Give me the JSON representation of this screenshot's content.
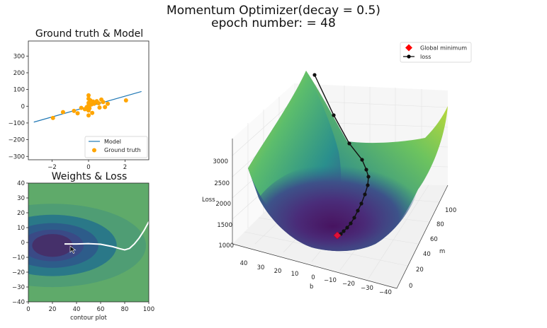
{
  "figure": {
    "title_line1": "Momentum Optimizer(decay = 0.5)",
    "title_line2": "epoch number: = 48"
  },
  "colors": {
    "model_line": "#1f77b4",
    "ground_truth": "#ffa500",
    "path_line": "#000000",
    "global_min": "#ff0000"
  },
  "chart_data": [
    {
      "id": "ground-truth-model",
      "type": "scatter",
      "title": "Ground truth & Model",
      "xlim": [
        -3.3,
        3.3
      ],
      "ylim": [
        -320,
        390
      ],
      "xticks": [
        -2,
        0,
        2
      ],
      "xtick_labels": [
        "−2",
        "0",
        "2"
      ],
      "yticks": [
        -300,
        -200,
        -100,
        0,
        100,
        200,
        300
      ],
      "ytick_labels": [
        "−300",
        "−200",
        "−100",
        "0",
        "100",
        "200",
        "300"
      ],
      "legend_position": "lower right",
      "series": [
        {
          "name": "Model",
          "kind": "line",
          "x": [
            -3.0,
            2.9
          ],
          "y": [
            -95,
            88
          ]
        },
        {
          "name": "Ground truth",
          "kind": "scatter",
          "points": [
            [
              -1.95,
              -70
            ],
            [
              -1.4,
              -35
            ],
            [
              -0.8,
              -28
            ],
            [
              -0.6,
              -42
            ],
            [
              -0.4,
              -10
            ],
            [
              -0.2,
              -18
            ],
            [
              -0.1,
              -5
            ],
            [
              0.0,
              -25
            ],
            [
              0.0,
              -55
            ],
            [
              0.0,
              65
            ],
            [
              0.0,
              45
            ],
            [
              0.0,
              20
            ],
            [
              0.0,
              5
            ],
            [
              0.05,
              -12
            ],
            [
              0.1,
              35
            ],
            [
              0.15,
              10
            ],
            [
              0.2,
              -40
            ],
            [
              0.25,
              28
            ],
            [
              0.3,
              15
            ],
            [
              0.35,
              22
            ],
            [
              0.45,
              30
            ],
            [
              0.55,
              18
            ],
            [
              0.6,
              -8
            ],
            [
              0.7,
              40
            ],
            [
              0.8,
              25
            ],
            [
              0.9,
              -5
            ],
            [
              1.05,
              15
            ],
            [
              2.05,
              35
            ]
          ]
        }
      ]
    },
    {
      "id": "weights-loss-contour",
      "type": "contour",
      "title": "Weights & Loss",
      "xlabel": "contour plot",
      "xlim": [
        0,
        100
      ],
      "ylim": [
        -40,
        40
      ],
      "xticks": [
        0,
        20,
        40,
        60,
        80,
        100
      ],
      "yticks": [
        -40,
        -30,
        -20,
        -10,
        0,
        10,
        20,
        30,
        40
      ],
      "ytick_labels": [
        "−40",
        "−30",
        "−20",
        "−10",
        "0",
        "10",
        "20",
        "30",
        "40"
      ],
      "levels": [
        {
          "rx": 240,
          "ry": 95,
          "color": "#4f9d74"
        },
        {
          "rx": 165,
          "ry": 70,
          "color": "#2a7888"
        },
        {
          "rx": 118,
          "ry": 51,
          "color": "#2d5c8a"
        },
        {
          "rx": 80,
          "ry": 36,
          "color": "#3a4a86"
        },
        {
          "rx": 52,
          "ry": 26,
          "color": "#45306a"
        }
      ],
      "center": [
        20,
        -2
      ],
      "path": [
        [
          30,
          -1
        ],
        [
          40,
          -1
        ],
        [
          50,
          -0.8
        ],
        [
          60,
          -1.2
        ],
        [
          70,
          -2.8
        ],
        [
          76,
          -4.2
        ],
        [
          80,
          -5
        ],
        [
          84,
          -4
        ],
        [
          88,
          -1
        ],
        [
          92,
          3
        ],
        [
          96,
          8
        ],
        [
          100,
          14
        ]
      ]
    },
    {
      "id": "loss-surface-3d",
      "type": "surface3d",
      "zlabel": "Loss",
      "xlabel": "b",
      "ylabel": "m",
      "z_ticks": [
        1000,
        1500,
        2000,
        2500,
        3000
      ],
      "b_ticks": [
        40,
        30,
        20,
        10,
        0,
        -10,
        -20,
        -30,
        -40
      ],
      "b_tick_labels": [
        "40",
        "30",
        "20",
        "10",
        "0",
        "−10",
        "−20",
        "−30",
        "−40"
      ],
      "m_ticks": [
        0,
        20,
        40,
        60,
        80,
        100
      ],
      "legend_position": "upper right",
      "legend": [
        {
          "name": "Global minimum",
          "marker": "diamond",
          "color": "#ff0000"
        },
        {
          "name": "loss",
          "marker": "line-dot",
          "color": "#000000"
        }
      ]
    }
  ]
}
